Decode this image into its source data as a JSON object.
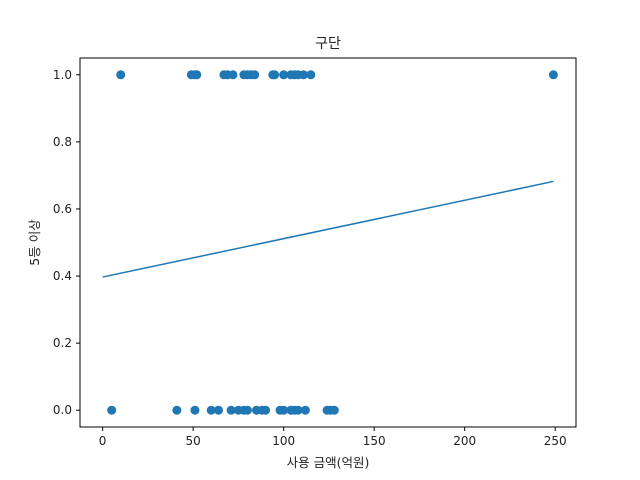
{
  "chart_data": {
    "type": "scatter",
    "title": "구단",
    "xlabel": "사용 금액(억원)",
    "ylabel": "5등 이상",
    "xlim": [
      -12.5,
      261.5
    ],
    "ylim": [
      -0.05,
      1.05
    ],
    "xticks": [
      0,
      50,
      100,
      150,
      200,
      250
    ],
    "yticks": [
      0.0,
      0.2,
      0.4,
      0.6,
      0.8,
      1.0
    ],
    "xtick_labels": [
      "0",
      "50",
      "100",
      "150",
      "200",
      "250"
    ],
    "ytick_labels": [
      "0.0",
      "0.2",
      "0.4",
      "0.6",
      "0.8",
      "1.0"
    ],
    "grid": false,
    "colors": {
      "points": "#1f77b4",
      "line": "#1f77b4"
    },
    "series": [
      {
        "kind": "points",
        "x": [
          10,
          49,
          51,
          52,
          67,
          69,
          72,
          78,
          80,
          82,
          84,
          94,
          95,
          100,
          104,
          106,
          108,
          111,
          115,
          249,
          5,
          41,
          51,
          60,
          64,
          71,
          75,
          78,
          80,
          85,
          88,
          90,
          98,
          100,
          104,
          106,
          108,
          112,
          124,
          126,
          128
        ],
        "y": [
          1,
          1,
          1,
          1,
          1,
          1,
          1,
          1,
          1,
          1,
          1,
          1,
          1,
          1,
          1,
          1,
          1,
          1,
          1,
          1,
          0,
          0,
          0,
          0,
          0,
          0,
          0,
          0,
          0,
          0,
          0,
          0,
          0,
          0,
          0,
          0,
          0,
          0,
          0,
          0,
          0
        ]
      },
      {
        "kind": "line",
        "x": [
          0,
          249
        ],
        "y": [
          0.397,
          0.682
        ]
      }
    ]
  }
}
